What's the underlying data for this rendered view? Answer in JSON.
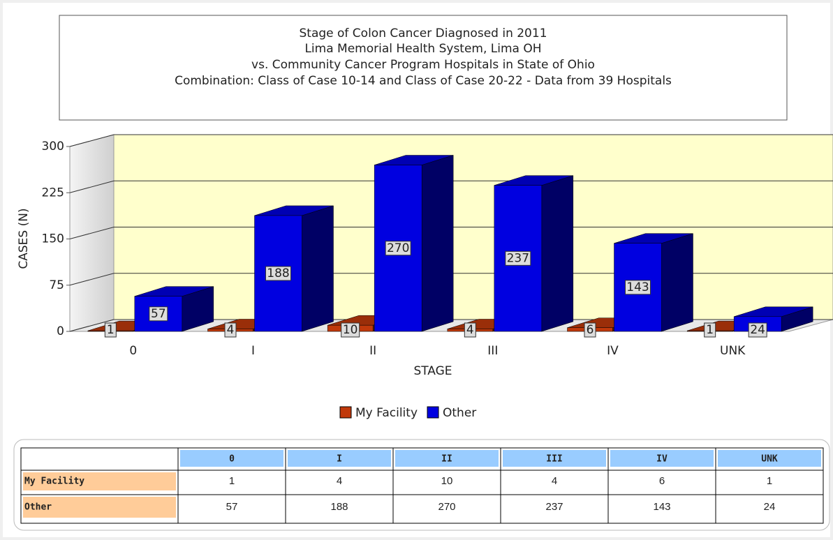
{
  "chart_data": {
    "type": "bar",
    "title": "Stage of Colon Cancer  Diagnosed in 2011",
    "subtitles": [
      "Lima Memorial Health System, Lima OH",
      "vs. Community Cancer Program Hospitals in State of Ohio",
      "Combination: Class of Case 10-14 and Class of Case 20-22  - Data from 39 Hospitals"
    ],
    "x_label": "STAGE",
    "y_label": "CASES (N)",
    "categories": [
      "0",
      "I",
      "II",
      "III",
      "IV",
      "UNK"
    ],
    "series": [
      {
        "name": "My Facility",
        "color": "#c0390b",
        "values": [
          1,
          4,
          10,
          4,
          6,
          1
        ]
      },
      {
        "name": "Other",
        "color": "#0000e0",
        "values": [
          57,
          188,
          270,
          237,
          143,
          24
        ]
      }
    ],
    "ylim": [
      0,
      300
    ],
    "yticks": [
      0,
      75,
      150,
      225,
      300
    ],
    "grid": true,
    "legend": "bottom"
  }
}
